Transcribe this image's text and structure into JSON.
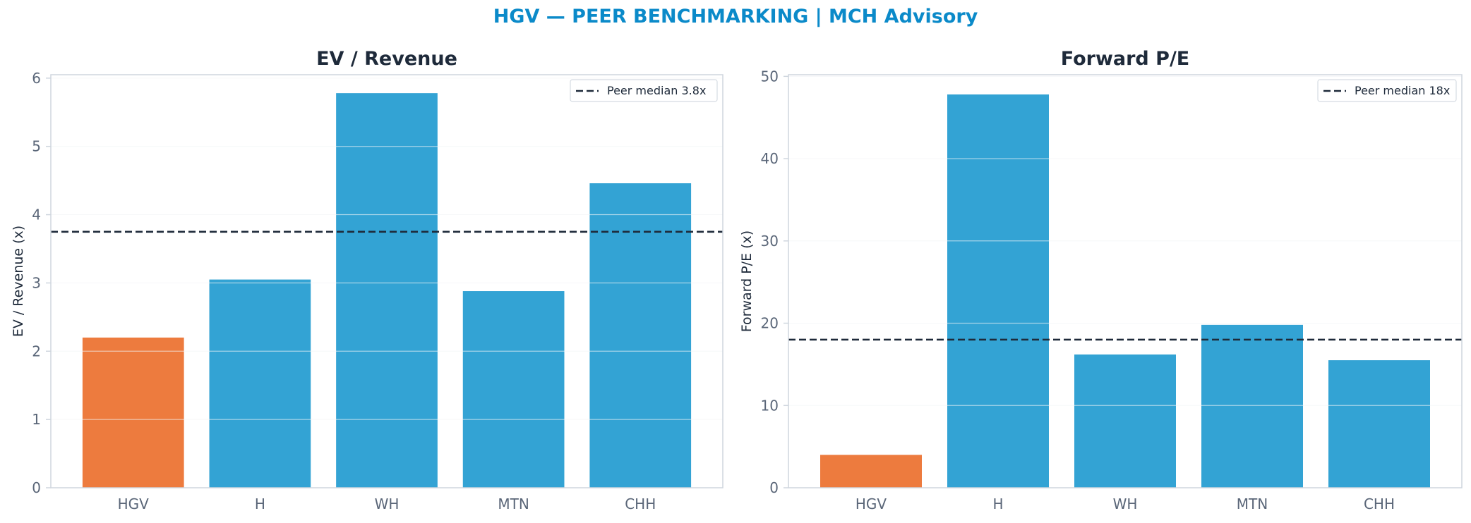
{
  "figure": {
    "title": "HGV — PEER BENCHMARKING | MCH Advisory",
    "title_color": "#0b8ac9"
  },
  "colors": {
    "highlight": "#ed7b3e",
    "peer": "#33a3d4",
    "median_line": "#1e2a3a",
    "axis": "#cfd6de",
    "grid": "#eef1f4"
  },
  "chart_data": [
    {
      "type": "bar",
      "title": "EV / Revenue",
      "ylabel": "EV / Revenue (x)",
      "categories": [
        "HGV",
        "H",
        "WH",
        "MTN",
        "CHH"
      ],
      "values": [
        2.2,
        3.05,
        5.78,
        2.88,
        4.46
      ],
      "highlight_category": "HGV",
      "ylim": [
        0,
        6.05
      ],
      "yticks": [
        0,
        1,
        2,
        3,
        4,
        5,
        6
      ],
      "reference_line": {
        "value": 3.75,
        "label": "Peer median 3.8x",
        "style": "dashed"
      },
      "legend": "top-right",
      "grid": true
    },
    {
      "type": "bar",
      "title": "Forward P/E",
      "ylabel": "Forward P/E (x)",
      "categories": [
        "HGV",
        "H",
        "WH",
        "MTN",
        "CHH"
      ],
      "values": [
        4.0,
        47.8,
        16.2,
        19.8,
        15.5
      ],
      "highlight_category": "HGV",
      "ylim": [
        0,
        50.2
      ],
      "yticks": [
        0,
        10,
        20,
        30,
        40,
        50
      ],
      "reference_line": {
        "value": 18.0,
        "label": "Peer median 18x",
        "style": "dashed"
      },
      "legend": "top-right",
      "grid": true
    }
  ]
}
